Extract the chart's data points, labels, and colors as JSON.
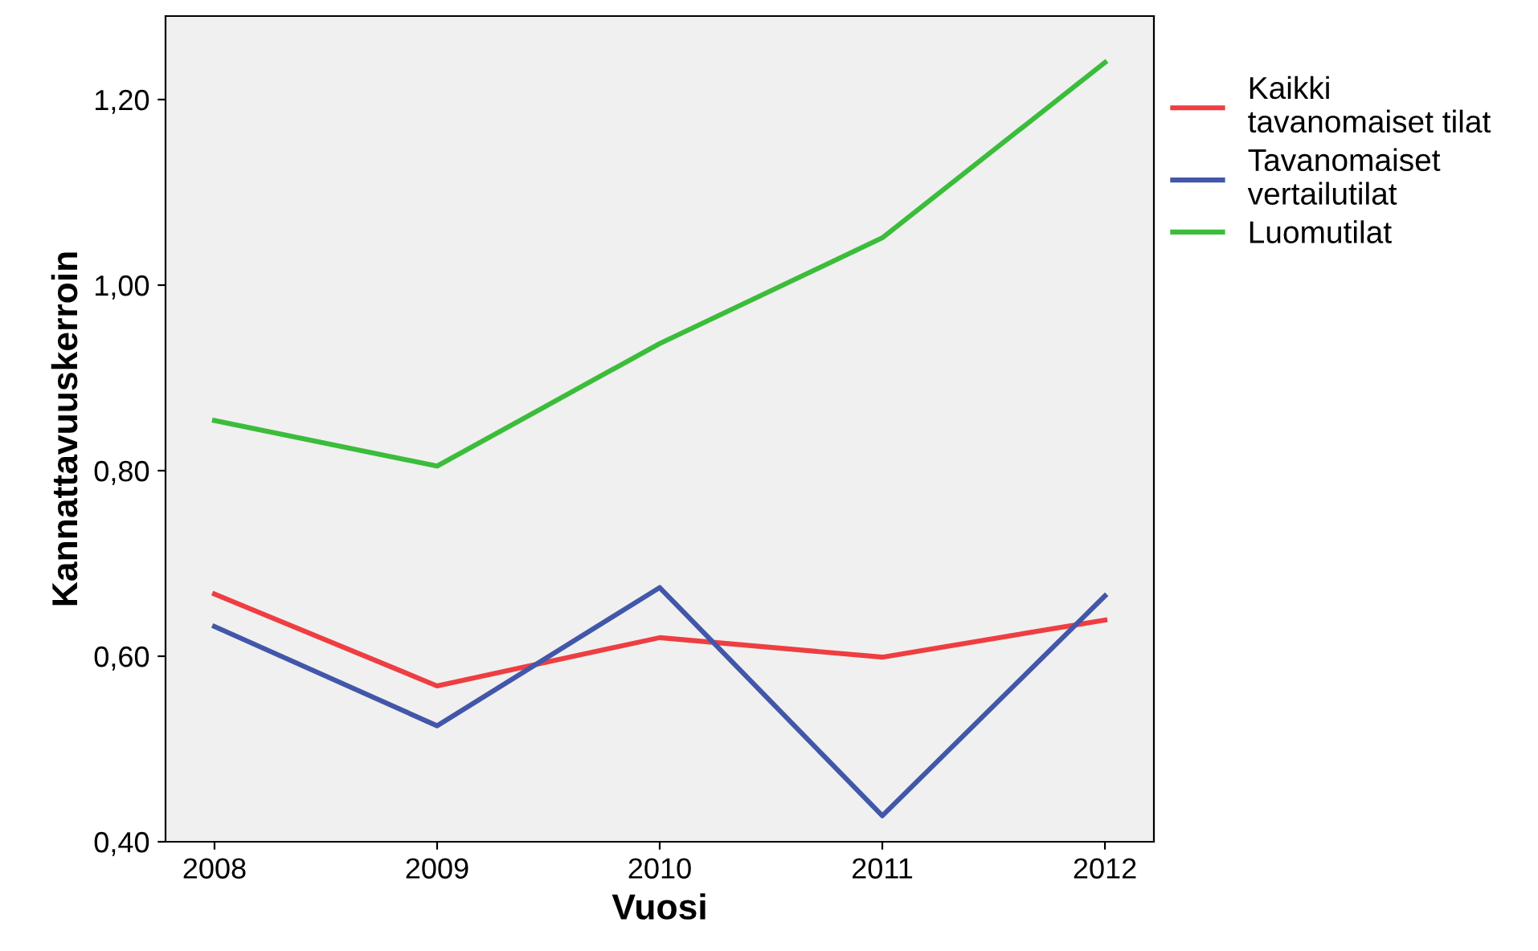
{
  "chart_data": {
    "type": "line",
    "xlabel": "Vuosi",
    "ylabel": "Kannattavuuskerroin",
    "x": [
      2008,
      2009,
      2010,
      2011,
      2012
    ],
    "series": [
      {
        "name": "Kaikki\ntavanomaiset tilat",
        "color": "#ee3e42",
        "values": [
          0.667,
          0.568,
          0.62,
          0.599,
          0.639
        ]
      },
      {
        "name": "Tavanomaiset\nvertailutilat",
        "color": "#4257a9",
        "values": [
          0.632,
          0.525,
          0.674,
          0.428,
          0.665
        ]
      },
      {
        "name": "Luomutilat",
        "color": "#3bbd3b",
        "values": [
          0.854,
          0.805,
          0.937,
          1.051,
          1.24
        ]
      }
    ],
    "xlim": [
      2007.78,
      2012.22
    ],
    "ylim": [
      0.4,
      1.29
    ],
    "xticks": [
      2008,
      2009,
      2010,
      2011,
      2012
    ],
    "yticks": [
      {
        "value": 0.4,
        "label": "0,40"
      },
      {
        "value": 0.6,
        "label": "0,60"
      },
      {
        "value": 0.8,
        "label": "0,80"
      },
      {
        "value": 1.0,
        "label": "1,00"
      },
      {
        "value": 1.2,
        "label": "1,20"
      }
    ],
    "grid": false,
    "legend": "top right",
    "marker": "none",
    "line_style": "solid"
  }
}
